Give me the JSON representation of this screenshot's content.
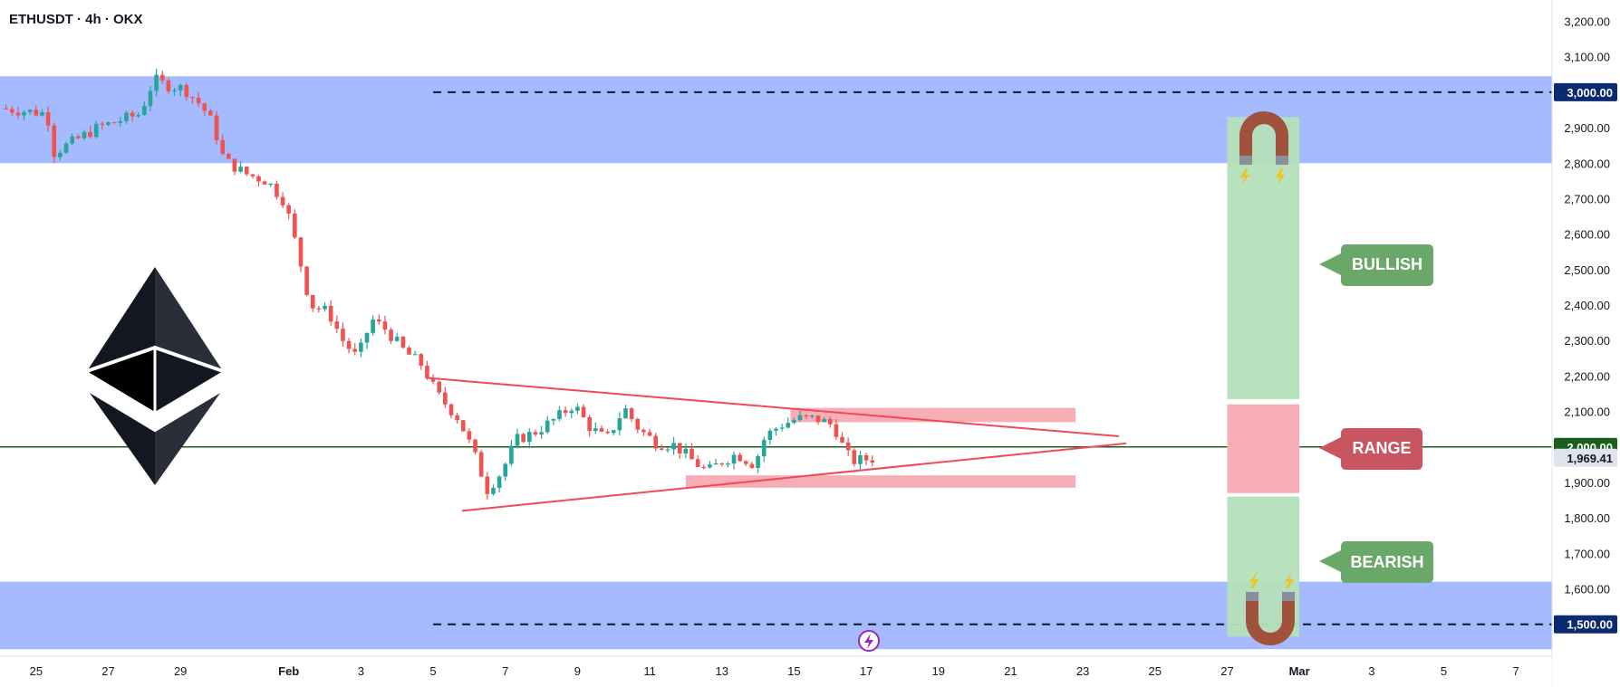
{
  "header": {
    "title": "ETHUSDT · 4h · OKX"
  },
  "price_labels": {
    "current": "1,969.41",
    "level_3000": "3,000.00",
    "level_2000": "2,000.00",
    "level_1500": "1,500.00"
  },
  "labels": {
    "bullish": "BULLISH",
    "range": "RANGE",
    "bearish": "BEARISH"
  },
  "colors": {
    "zone_blue": "#a6baff",
    "green_box": "#b4dfba",
    "range_box": "#f7aeb6",
    "bullish_label": "#6aa86a",
    "range_label": "#c95561",
    "bearish_label": "#6aa86a",
    "bull_candle": "#26a69a",
    "bear_candle": "#ef5350",
    "trendline": "#f0495a",
    "current_line": "#1b5e20",
    "magnet": "#a0523d"
  },
  "icons": [
    "ethereum-logo-icon",
    "magnet-icon",
    "lightning-icon"
  ],
  "chart_data": {
    "type": "candlestick",
    "title": "ETHUSDT · 4h · OKX",
    "y_ticks": [
      "3,200.00",
      "3,100.00",
      "3,000.00",
      "2,900.00",
      "2,800.00",
      "2,700.00",
      "2,600.00",
      "2,500.00",
      "2,400.00",
      "2,300.00",
      "2,200.00",
      "2,100.00",
      "2,000.00",
      "1,900.00",
      "1,800.00",
      "1,700.00",
      "1,600.00",
      "1,500.00"
    ],
    "y_tick_values": [
      3200,
      3100,
      3000,
      2900,
      2800,
      2700,
      2600,
      2500,
      2400,
      2300,
      2200,
      2100,
      2000,
      1900,
      1800,
      1700,
      1600,
      1500
    ],
    "x_ticks": [
      "25",
      "27",
      "29",
      "Feb",
      "3",
      "5",
      "7",
      "9",
      "11",
      "13",
      "15",
      "17",
      "19",
      "21",
      "23",
      "25",
      "27",
      "Mar",
      "3",
      "5",
      "7"
    ],
    "x_tick_days": [
      -7,
      -5,
      -3,
      0,
      2,
      4,
      6,
      8,
      10,
      12,
      14,
      16,
      18,
      20,
      22,
      24,
      26,
      28,
      30,
      32,
      34
    ],
    "ylim": [
      1410,
      3260
    ],
    "xlim_days": [
      -8,
      35
    ],
    "current_price": 1969.41,
    "horizontal_levels": [
      3000,
      2000,
      1500
    ],
    "zones": [
      {
        "name": "resistance-zone",
        "from": 2800,
        "to": 3045
      },
      {
        "name": "support-zone",
        "from": 1430,
        "to": 1620
      }
    ],
    "trendlines": [
      {
        "name": "upper",
        "start": [
          3.8,
          2195
        ],
        "end": [
          23.0,
          2030
        ]
      },
      {
        "name": "lower",
        "start": [
          4.8,
          1820
        ],
        "end": [
          23.2,
          2010
        ]
      }
    ],
    "range_boxes": [
      {
        "start_day": 13.9,
        "end_day": 21.8,
        "from": 2070,
        "to": 2110
      },
      {
        "start_day": 11.0,
        "end_day": 21.8,
        "from": 1885,
        "to": 1920
      }
    ],
    "projection": {
      "start_day": 26.0,
      "end_day": 28.0,
      "bullish_from": 2135,
      "bullish_to": 2930,
      "range_from": 1870,
      "range_to": 2120,
      "bearish_from": 1465,
      "bearish_to": 1860
    },
    "waypoints": [
      [
        -8,
        2955
      ],
      [
        -6.7,
        2940
      ],
      [
        -6.5,
        2830
      ],
      [
        -5.3,
        2900
      ],
      [
        -4.1,
        2940
      ],
      [
        -3.9,
        3000
      ],
      [
        -3.7,
        3035
      ],
      [
        -3.4,
        3020
      ],
      [
        -2.9,
        3010
      ],
      [
        -2.4,
        2960
      ],
      [
        -2.1,
        2910
      ],
      [
        -1.8,
        2810
      ],
      [
        -1.2,
        2770
      ],
      [
        -0.6,
        2750
      ],
      [
        -0.1,
        2690
      ],
      [
        0.2,
        2570
      ],
      [
        0.6,
        2400
      ],
      [
        1.1,
        2380
      ],
      [
        1.5,
        2300
      ],
      [
        1.9,
        2250
      ],
      [
        2.3,
        2360
      ],
      [
        2.7,
        2330
      ],
      [
        3.2,
        2270
      ],
      [
        3.7,
        2230
      ],
      [
        4.1,
        2150
      ],
      [
        4.7,
        2080
      ],
      [
        5.1,
        1990
      ],
      [
        5.5,
        1880
      ],
      [
        5.9,
        1930
      ],
      [
        6.3,
        2020
      ],
      [
        6.8,
        2040
      ],
      [
        7.4,
        2080
      ],
      [
        7.9,
        2120
      ],
      [
        8.3,
        2060
      ],
      [
        8.8,
        2020
      ],
      [
        9.3,
        2110
      ],
      [
        9.7,
        2050
      ],
      [
        10.2,
        2010
      ],
      [
        10.7,
        2005
      ],
      [
        11.2,
        1960
      ],
      [
        11.6,
        1930
      ],
      [
        12.0,
        1960
      ],
      [
        12.4,
        1980
      ],
      [
        12.9,
        1950
      ],
      [
        13.2,
        2030
      ],
      [
        13.6,
        2060
      ],
      [
        14.1,
        2080
      ],
      [
        14.6,
        2080
      ],
      [
        15.1,
        2060
      ],
      [
        15.4,
        1990
      ],
      [
        15.6,
        1960
      ],
      [
        16.0,
        1965
      ],
      [
        16.3,
        1969
      ]
    ]
  }
}
